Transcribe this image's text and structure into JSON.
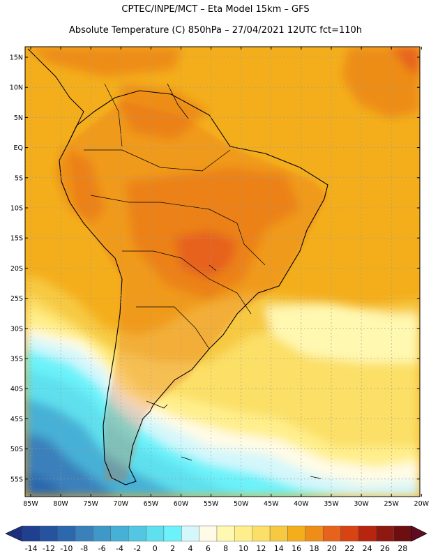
{
  "header": {
    "line1": "CPTEC/INPE/MCT –  Eta Model 15km – GFS",
    "line2": "Absolute Temperature (C) 850hPa – 27/04/2021 12UTC fct=110h"
  },
  "axes": {
    "lat_labels": [
      "15N",
      "10N",
      "5N",
      "EQ",
      "5S",
      "10S",
      "15S",
      "20S",
      "25S",
      "30S",
      "35S",
      "40S",
      "45S",
      "50S",
      "55S"
    ],
    "lon_labels": [
      "85W",
      "80W",
      "75W",
      "70W",
      "65W",
      "60W",
      "55W",
      "50W",
      "45W",
      "40W",
      "35W",
      "30W",
      "25W",
      "20W"
    ]
  },
  "colorbar": {
    "labels": [
      "-14",
      "-12",
      "-10",
      "-8",
      "-6",
      "-4",
      "-2",
      "0",
      "2",
      "4",
      "6",
      "8",
      "10",
      "12",
      "14",
      "16",
      "18",
      "20",
      "22",
      "24",
      "26",
      "28"
    ],
    "colors": [
      "#1f3f8f",
      "#25539f",
      "#2c68ad",
      "#3a80bb",
      "#3e98c8",
      "#46b0d6",
      "#52c6e2",
      "#5ee0ee",
      "#6cf2fa",
      "#d4f7fb",
      "#fffbe6",
      "#fff8b0",
      "#ffef8c",
      "#fbdf66",
      "#f7c943",
      "#f4ae1c",
      "#ee8d18",
      "#e7621a",
      "#d74312",
      "#b8250f",
      "#8f1810",
      "#6d0f10"
    ],
    "min_arrow_color": "#1f2f7f",
    "max_arrow_color": "#600b22"
  },
  "map": {
    "background": "#f4ae1c",
    "gridline_color": "#9a9a9a",
    "coast_color": "#000000"
  }
}
